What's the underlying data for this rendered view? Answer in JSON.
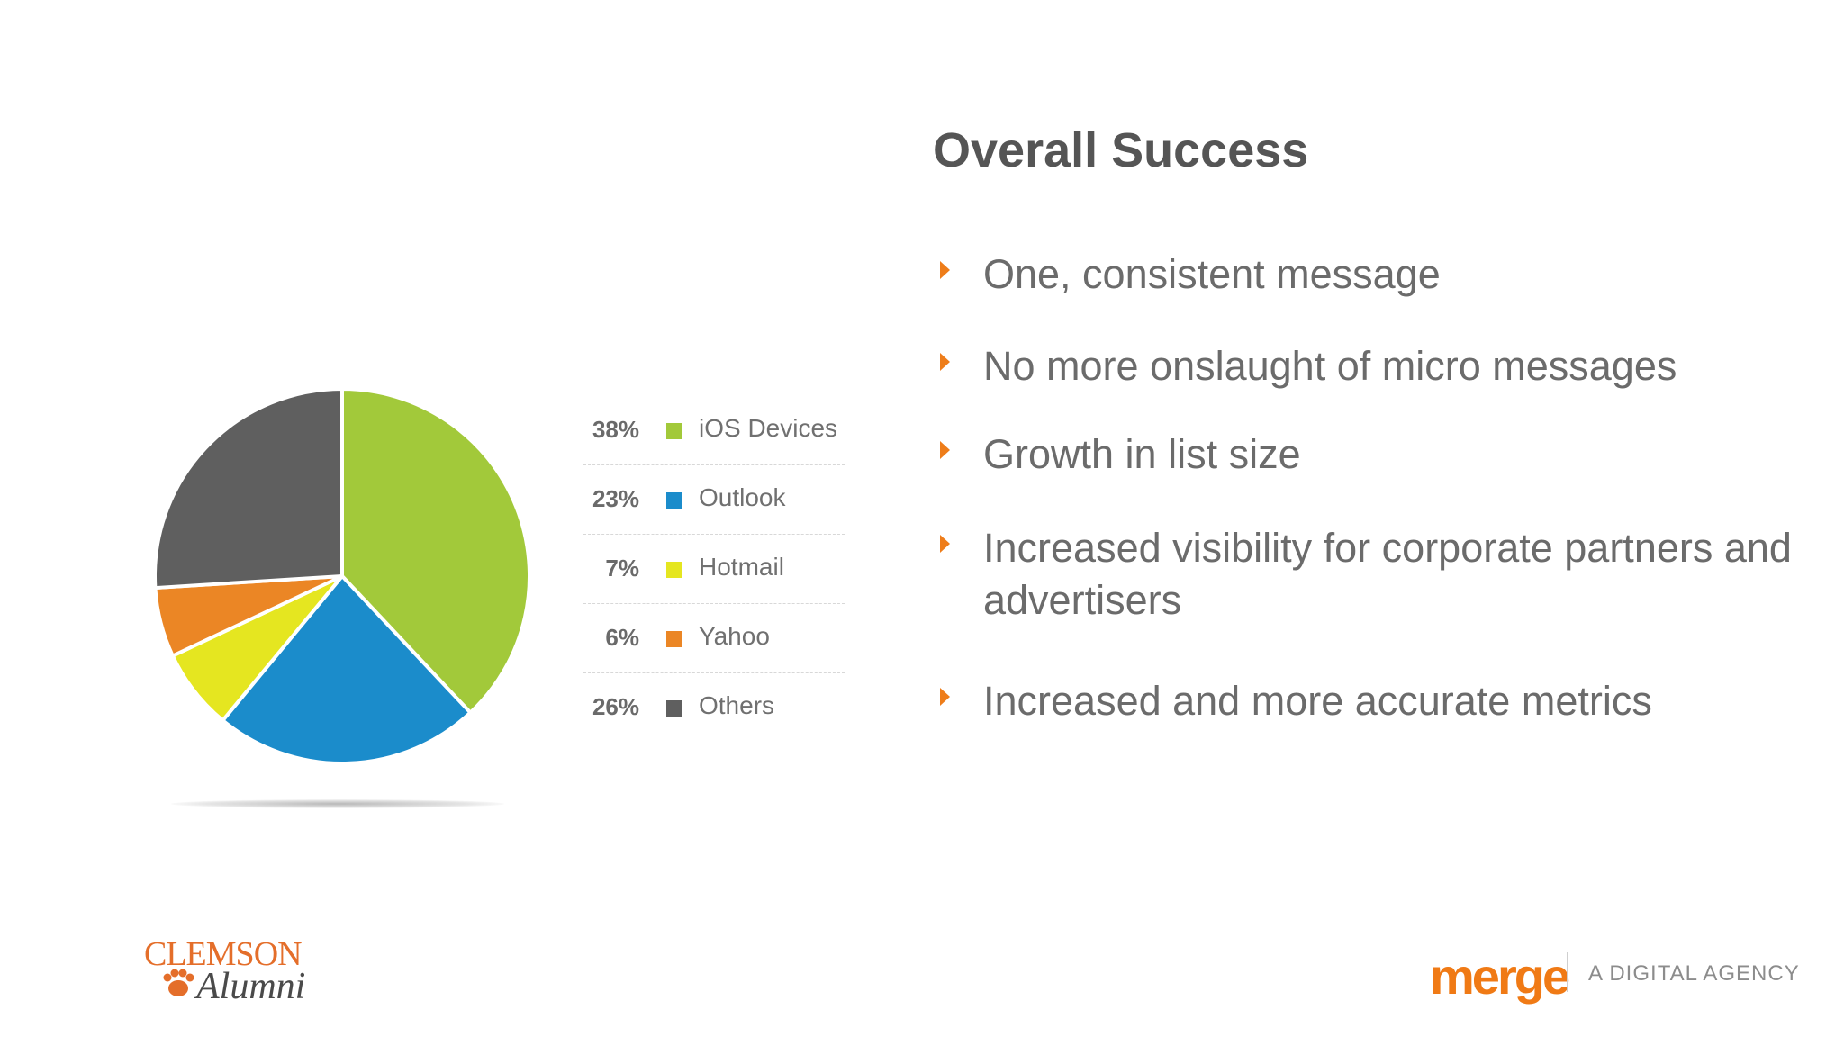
{
  "title": "Overall Success",
  "bullets": [
    "One, consistent message",
    "No more onslaught of micro messages",
    "Growth in list size",
    "Increased visibility for corporate partners and advertisers",
    "Increased and more accurate metrics"
  ],
  "colors": {
    "accent": "#ee7d1a",
    "text": "#6b6b6b",
    "title": "#555555"
  },
  "chart_data": {
    "type": "pie",
    "title": "",
    "legend_position": "right",
    "slices": [
      {
        "label": "iOS Devices",
        "value": 38,
        "pct_label": "38%",
        "color": "#a2c93a"
      },
      {
        "label": "Outlook",
        "value": 23,
        "pct_label": "23%",
        "color": "#1b8ccb"
      },
      {
        "label": "Hotmail",
        "value": 7,
        "pct_label": "7%",
        "color": "#e5e620"
      },
      {
        "label": "Yahoo",
        "value": 6,
        "pct_label": "6%",
        "color": "#eb8625"
      },
      {
        "label": "Others",
        "value": 26,
        "pct_label": "26%",
        "color": "#5f5f5f"
      }
    ]
  },
  "logos": {
    "clemson_word": "CLEMSON",
    "clemson_script": "Alumni",
    "merge_word": "merge",
    "merge_tagline": "A DIGITAL AGENCY"
  }
}
